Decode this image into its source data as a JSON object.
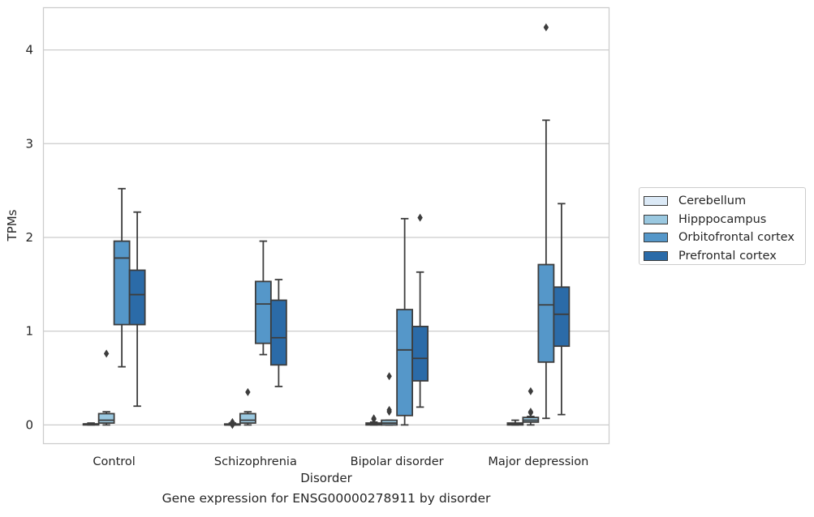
{
  "chart_data": {
    "type": "box",
    "xlabel": "Disorder",
    "ylabel": "TPMs",
    "categories": [
      "Control",
      "Schizophrenia",
      "Bipolar disorder",
      "Major depression"
    ],
    "ylim": [
      -0.2,
      4.45
    ],
    "yticks": [
      0,
      1,
      2,
      3,
      4
    ],
    "grid": "horizontal",
    "legend_position": "right",
    "series": [
      {
        "name": "Cerebellum",
        "color": "#dbe9f6",
        "boxes": [
          {
            "whislo": 0.0,
            "q1": 0.0,
            "med": 0.01,
            "q3": 0.01,
            "whishi": 0.02,
            "fliers": []
          },
          {
            "whislo": 0.0,
            "q1": 0.0,
            "med": 0.0,
            "q3": 0.01,
            "whishi": 0.02,
            "fliers": [
              0.0,
              0.02,
              0.03
            ]
          },
          {
            "whislo": 0.0,
            "q1": 0.0,
            "med": 0.01,
            "q3": 0.02,
            "whishi": 0.03,
            "fliers": [
              0.06,
              0.07
            ]
          },
          {
            "whislo": 0.0,
            "q1": 0.0,
            "med": 0.01,
            "q3": 0.02,
            "whishi": 0.05,
            "fliers": []
          }
        ]
      },
      {
        "name": "Hipppocampus",
        "color": "#9ac8e0",
        "boxes": [
          {
            "whislo": 0.0,
            "q1": 0.02,
            "med": 0.05,
            "q3": 0.12,
            "whishi": 0.14,
            "fliers": [
              0.76
            ]
          },
          {
            "whislo": 0.0,
            "q1": 0.02,
            "med": 0.05,
            "q3": 0.12,
            "whishi": 0.14,
            "fliers": [
              0.35
            ]
          },
          {
            "whislo": 0.0,
            "q1": 0.0,
            "med": 0.02,
            "q3": 0.05,
            "whishi": 0.05,
            "fliers": [
              0.14,
              0.16,
              0.52
            ]
          },
          {
            "whislo": 0.0,
            "q1": 0.03,
            "med": 0.05,
            "q3": 0.08,
            "whishi": 0.09,
            "fliers": [
              0.13,
              0.14,
              0.36
            ]
          }
        ]
      },
      {
        "name": "Orbitofrontal cortex",
        "color": "#5597c9",
        "boxes": [
          {
            "whislo": 0.62,
            "q1": 1.07,
            "med": 1.78,
            "q3": 1.96,
            "whishi": 2.52,
            "fliers": []
          },
          {
            "whislo": 0.75,
            "q1": 0.87,
            "med": 1.29,
            "q3": 1.53,
            "whishi": 1.96,
            "fliers": []
          },
          {
            "whislo": 0.0,
            "q1": 0.1,
            "med": 0.8,
            "q3": 1.23,
            "whishi": 2.2,
            "fliers": []
          },
          {
            "whislo": 0.07,
            "q1": 0.67,
            "med": 1.28,
            "q3": 1.71,
            "whishi": 3.25,
            "fliers": [
              4.24
            ]
          }
        ]
      },
      {
        "name": "Prefrontal cortex",
        "color": "#2b6ba8",
        "boxes": [
          {
            "whislo": 0.2,
            "q1": 1.07,
            "med": 1.39,
            "q3": 1.65,
            "whishi": 2.27,
            "fliers": []
          },
          {
            "whislo": 0.41,
            "q1": 0.64,
            "med": 0.93,
            "q3": 1.33,
            "whishi": 1.55,
            "fliers": []
          },
          {
            "whislo": 0.19,
            "q1": 0.47,
            "med": 0.71,
            "q3": 1.05,
            "whishi": 1.63,
            "fliers": [
              2.21
            ]
          },
          {
            "whislo": 0.11,
            "q1": 0.84,
            "med": 1.18,
            "q3": 1.47,
            "whishi": 2.36,
            "fliers": []
          }
        ]
      }
    ]
  },
  "caption": "Gene expression for ENSG00000278911 by disorder"
}
